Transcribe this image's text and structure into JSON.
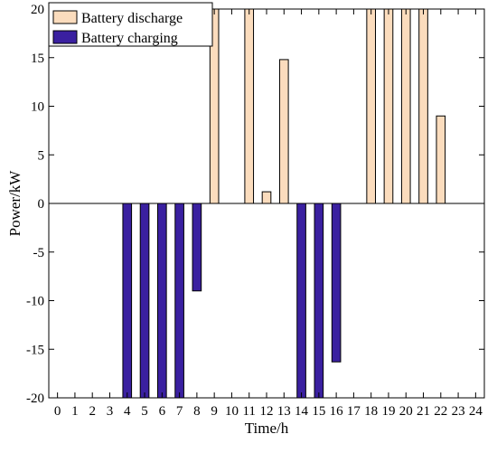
{
  "chart_data": {
    "type": "bar",
    "title": "",
    "xlabel": "Time/h",
    "ylabel": "Power/kW",
    "ylim": [
      -20,
      20
    ],
    "xlim": [
      -0.5,
      24.5
    ],
    "x": [
      0,
      1,
      2,
      3,
      4,
      5,
      6,
      7,
      8,
      9,
      10,
      11,
      12,
      13,
      14,
      15,
      16,
      17,
      18,
      19,
      20,
      21,
      22,
      23,
      24
    ],
    "x_tick_labels": [
      "0",
      "1",
      "2",
      "3",
      "4",
      "5",
      "6",
      "7",
      "8",
      "9",
      "10",
      "11",
      "12",
      "13",
      "14",
      "15",
      "16",
      "17",
      "18",
      "19",
      "20",
      "21",
      "22",
      "23",
      "24"
    ],
    "y_ticks": [
      20,
      15,
      10,
      5,
      0,
      -5,
      -10,
      -15,
      -20
    ],
    "y_tick_labels": [
      "20",
      "15",
      "10",
      "5",
      "0",
      "-5",
      "-10",
      "-15",
      "-20"
    ],
    "grid": false,
    "legend_position": "top-left",
    "series": [
      {
        "name": "Battery discharge",
        "color": "#fbdcbd",
        "values": [
          0,
          0,
          0,
          0,
          0,
          0,
          0,
          0,
          0,
          20,
          0,
          20,
          1.2,
          14.8,
          0,
          0,
          0,
          0,
          20,
          20,
          20,
          20,
          9,
          0,
          0
        ]
      },
      {
        "name": "Battery charging",
        "color": "#3a20a0",
        "values": [
          0,
          0,
          0,
          0,
          -20,
          -20,
          -20,
          -20,
          -9,
          0,
          0,
          0,
          0,
          0,
          -20,
          -20,
          -16.3,
          0,
          0,
          0,
          0,
          0,
          0,
          0,
          0
        ]
      }
    ]
  }
}
